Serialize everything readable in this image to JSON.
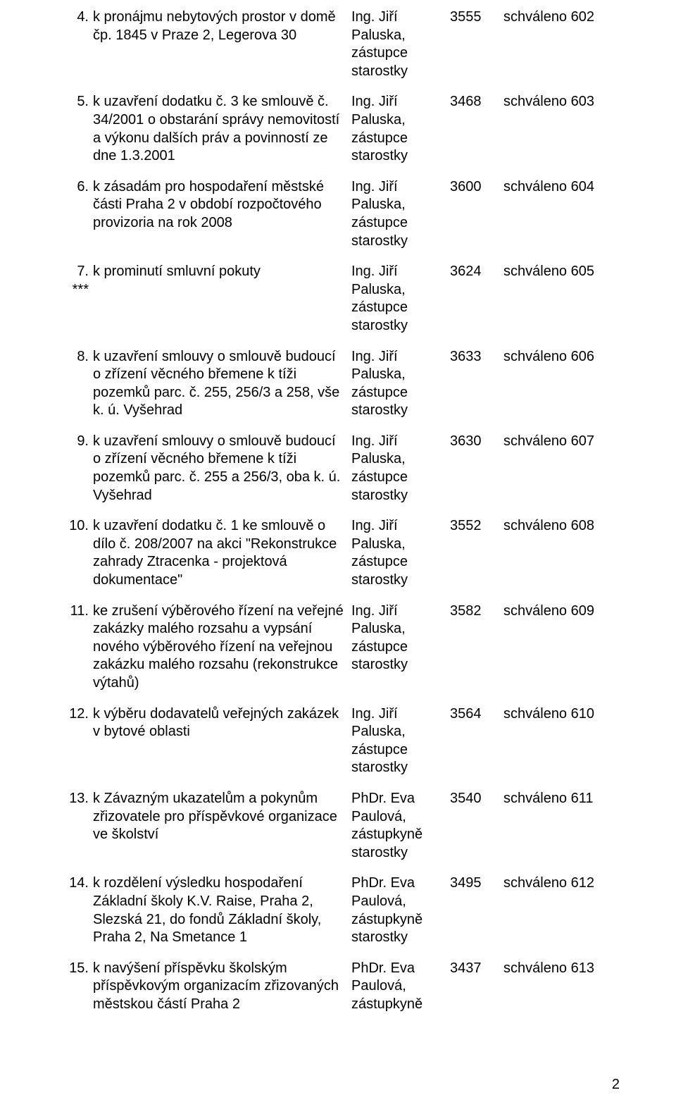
{
  "page_number": "2",
  "rows": [
    {
      "num": "4.",
      "title": "k pronájmu nebytových prostor v domě čp. 1845 v Praze 2, Legerova 30",
      "presenter": "Ing. Jiří Paluska, zástupce starostky",
      "code": "3555",
      "status": "schváleno 602"
    },
    {
      "num": "5.",
      "title": "k uzavření dodatku č. 3 ke smlouvě č. 34/2001 o obstarání správy nemovitostí a výkonu dalších práv a povinností ze dne 1.3.2001",
      "presenter": "Ing. Jiří Paluska, zástupce starostky",
      "code": "3468",
      "status": "schváleno 603"
    },
    {
      "num": "6.",
      "title": "k zásadám pro hospodaření městské části Praha 2 v období rozpočtového provizoria na rok 2008",
      "presenter": "Ing. Jiří Paluska, zástupce starostky",
      "code": "3600",
      "status": "schváleno 604"
    },
    {
      "num": "7.\n***",
      "title": "k prominutí smluvní pokuty",
      "presenter": "Ing. Jiří Paluska, zástupce starostky",
      "code": "3624",
      "status": "schváleno 605"
    },
    {
      "num": "8.",
      "title": "k uzavření smlouvy o smlouvě budoucí o zřízení věcného břemene k tíži pozemků parc. č. 255, 256/3 a 258, vše k. ú. Vyšehrad",
      "presenter": "Ing. Jiří Paluska, zástupce starostky",
      "code": "3633",
      "status": "schváleno 606"
    },
    {
      "num": "9.",
      "title": "k uzavření smlouvy o smlouvě budoucí o zřízení věcného břemene k tíži pozemků parc. č. 255 a 256/3, oba k. ú. Vyšehrad",
      "presenter": "Ing. Jiří Paluska, zástupce starostky",
      "code": "3630",
      "status": "schváleno 607"
    },
    {
      "num": "10.",
      "title": "k uzavření dodatku č. 1 ke smlouvě o dílo č. 208/2007 na akci \"Rekonstrukce zahrady Ztracenka - projektová dokumentace\"",
      "presenter": "Ing. Jiří Paluska, zástupce starostky",
      "code": "3552",
      "status": "schváleno 608"
    },
    {
      "num": "11.",
      "title": "ke zrušení výběrového řízení na veřejné zakázky malého rozsahu a vypsání nového výběrového řízení na veřejnou zakázku malého rozsahu (rekonstrukce výtahů)",
      "presenter": "Ing. Jiří Paluska, zástupce starostky",
      "code": "3582",
      "status": "schváleno 609"
    },
    {
      "num": "12.",
      "title": "k výběru dodavatelů veřejných zakázek v bytové oblasti",
      "presenter": "Ing. Jiří Paluska, zástupce starostky",
      "code": "3564",
      "status": "schváleno 610"
    },
    {
      "num": "13.",
      "title": "k Závazným ukazatelům a pokynům zřizovatele pro příspěvkové organizace ve školství",
      "presenter": "PhDr. Eva Paulová, zástupkyně starostky",
      "code": "3540",
      "status": "schváleno 611"
    },
    {
      "num": "14.",
      "title": "k rozdělení výsledku hospodaření Základní školy K.V. Raise, Praha 2, Slezská 21, do fondů Základní školy, Praha 2, Na Smetance 1",
      "presenter": "PhDr. Eva Paulová, zástupkyně starostky",
      "code": "3495",
      "status": "schváleno 612"
    },
    {
      "num": "15.",
      "title": "k navýšení příspěvku školským příspěvkovým organizacím zřizovaných městskou částí Praha 2",
      "presenter": "PhDr. Eva Paulová, zástupkyně",
      "code": "3437",
      "status": "schváleno 613"
    }
  ]
}
